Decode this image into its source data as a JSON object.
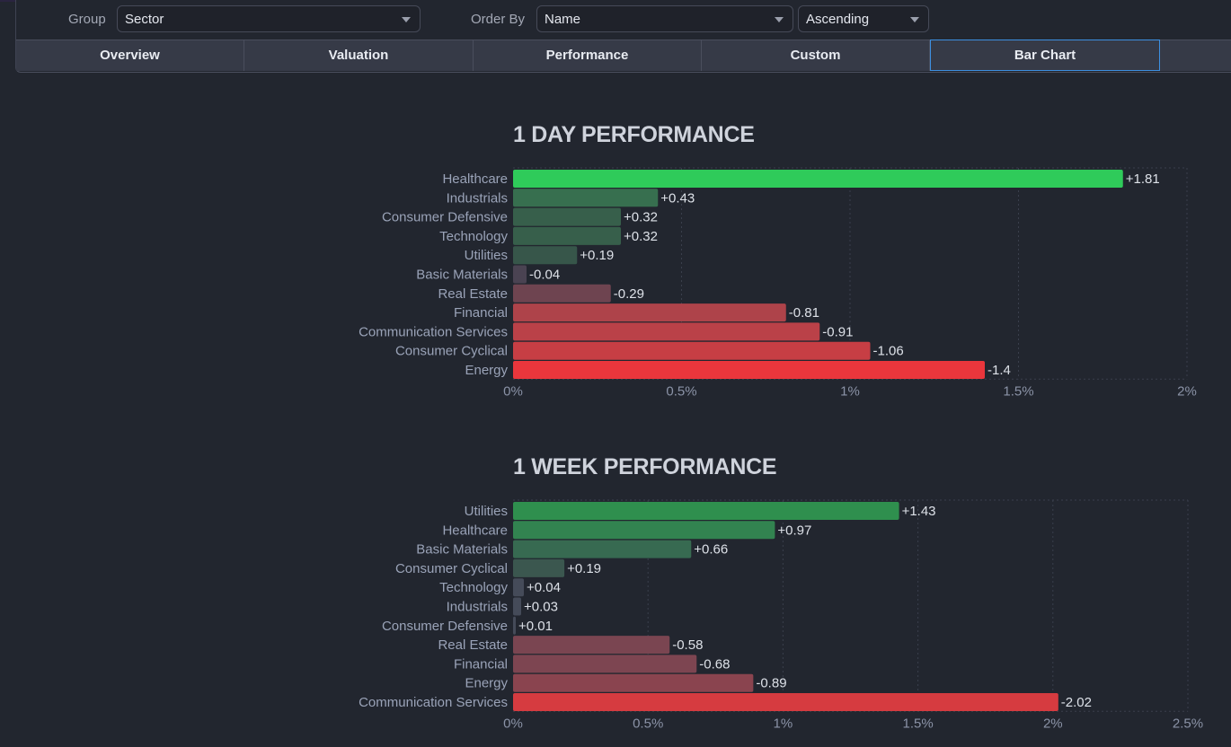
{
  "filters": {
    "group_label": "Group",
    "group_value": "Sector",
    "order_label": "Order By",
    "order_value": "Name",
    "direction_value": "Ascending"
  },
  "tabs": [
    {
      "label": "Overview",
      "active": false
    },
    {
      "label": "Valuation",
      "active": false
    },
    {
      "label": "Performance",
      "active": false
    },
    {
      "label": "Custom",
      "active": false
    },
    {
      "label": "Bar Chart",
      "active": true
    }
  ],
  "chart_data": [
    {
      "type": "bar",
      "orientation": "horizontal",
      "title": "1 DAY PERFORMANCE",
      "xlabel": "",
      "ylabel": "",
      "xlim": [
        0,
        2
      ],
      "xticks": [
        "0%",
        "0.5%",
        "1%",
        "1.5%",
        "2%"
      ],
      "xtick_values": [
        0,
        0.5,
        1,
        1.5,
        2
      ],
      "grid": true,
      "categories": [
        "Healthcare",
        "Industrials",
        "Consumer Defensive",
        "Technology",
        "Utilities",
        "Basic Materials",
        "Real Estate",
        "Financial",
        "Communication Services",
        "Consumer Cyclical",
        "Energy"
      ],
      "values": [
        1.81,
        0.43,
        0.32,
        0.32,
        0.19,
        -0.04,
        -0.29,
        -0.81,
        -0.91,
        -1.06,
        -1.4
      ],
      "value_labels": [
        "+1.81",
        "+0.43",
        "+0.32",
        "+0.32",
        "+0.19",
        "-0.04",
        "-0.29",
        "-0.81",
        "-0.91",
        "-1.06",
        "-1.4"
      ],
      "colors": [
        "#2fcb5a",
        "#376f4f",
        "#375f4b",
        "#375f4b",
        "#37564a",
        "#4a4352",
        "#6e4450",
        "#ae434a",
        "#ba4148",
        "#c73e44",
        "#ea363c"
      ]
    },
    {
      "type": "bar",
      "orientation": "horizontal",
      "title": "1 WEEK PERFORMANCE",
      "xlabel": "",
      "ylabel": "",
      "xlim": [
        0,
        2.5
      ],
      "xticks": [
        "0%",
        "0.5%",
        "1%",
        "1.5%",
        "2%",
        "2.5%"
      ],
      "xtick_values": [
        0,
        0.5,
        1,
        1.5,
        2,
        2.5
      ],
      "grid": true,
      "categories": [
        "Utilities",
        "Healthcare",
        "Basic Materials",
        "Consumer Cyclical",
        "Technology",
        "Industrials",
        "Consumer Defensive",
        "Real Estate",
        "Financial",
        "Energy",
        "Communication Services"
      ],
      "values": [
        1.43,
        0.97,
        0.66,
        0.19,
        0.04,
        0.03,
        0.01,
        -0.58,
        -0.68,
        -0.89,
        -2.02
      ],
      "value_labels": [
        "+1.43",
        "+0.97",
        "+0.66",
        "+0.19",
        "+0.04",
        "+0.03",
        "+0.01",
        "-0.58",
        "-0.68",
        "-0.89",
        "-2.02"
      ],
      "colors": [
        "#2f8f4e",
        "#328350",
        "#376a51",
        "#3b574f",
        "#454b59",
        "#454b59",
        "#454b59",
        "#7a4551",
        "#7d4551",
        "#8a444f",
        "#d63b40"
      ]
    }
  ]
}
